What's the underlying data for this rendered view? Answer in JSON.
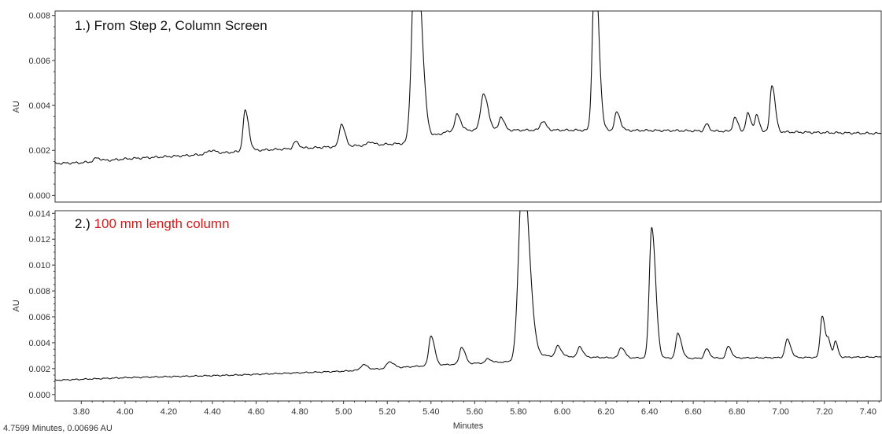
{
  "status_text": "4.7599 Minutes, 0.00696 AU",
  "colors": {
    "trace": "#111111",
    "highlight": "#d11d1d",
    "axis": "#333333"
  },
  "chart_data": [
    {
      "type": "line",
      "title_prefix": "1.) ",
      "title_main": "From Step 2, Column Screen",
      "title_main_color": "#111111",
      "xlabel": "",
      "ylabel": "AU",
      "xlim": [
        3.68,
        7.46
      ],
      "ylim": [
        -0.0003,
        0.0082
      ],
      "yticks": [
        "0.000",
        "0.002",
        "0.004",
        "0.006",
        "0.008"
      ],
      "grid": false,
      "baseline": [
        [
          3.68,
          0.00142
        ],
        [
          3.8,
          0.00145
        ],
        [
          4.0,
          0.00162
        ],
        [
          4.3,
          0.00178
        ],
        [
          4.6,
          0.002
        ],
        [
          5.0,
          0.00218
        ],
        [
          5.3,
          0.00232
        ],
        [
          5.5,
          0.0029
        ],
        [
          6.0,
          0.0029
        ],
        [
          6.5,
          0.00288
        ],
        [
          7.0,
          0.00282
        ],
        [
          7.46,
          0.00275
        ]
      ],
      "peaks": [
        {
          "x": 3.87,
          "height": 0.00015,
          "width": 0.012
        },
        {
          "x": 4.39,
          "height": 0.00015,
          "width": 0.015
        },
        {
          "x": 4.55,
          "height": 0.0018,
          "width": 0.01
        },
        {
          "x": 4.78,
          "height": 0.0003,
          "width": 0.01
        },
        {
          "x": 4.99,
          "height": 0.001,
          "width": 0.01
        },
        {
          "x": 5.12,
          "height": 0.00015,
          "width": 0.01
        },
        {
          "x": 5.33,
          "height": 0.0095,
          "width": 0.016
        },
        {
          "x": 5.52,
          "height": 0.0007,
          "width": 0.01
        },
        {
          "x": 5.64,
          "height": 0.0016,
          "width": 0.013
        },
        {
          "x": 5.72,
          "height": 0.0006,
          "width": 0.009
        },
        {
          "x": 5.91,
          "height": 0.0004,
          "width": 0.01
        },
        {
          "x": 6.15,
          "height": 0.0075,
          "width": 0.011
        },
        {
          "x": 6.25,
          "height": 0.0008,
          "width": 0.01
        },
        {
          "x": 6.66,
          "height": 0.0003,
          "width": 0.008
        },
        {
          "x": 6.79,
          "height": 0.0006,
          "width": 0.009
        },
        {
          "x": 6.85,
          "height": 0.0008,
          "width": 0.009
        },
        {
          "x": 6.89,
          "height": 0.0007,
          "width": 0.008
        },
        {
          "x": 6.96,
          "height": 0.0021,
          "width": 0.009
        }
      ]
    },
    {
      "type": "line",
      "title_prefix": "2.) ",
      "title_main": "100 mm length column",
      "title_main_color": "#d11d1d",
      "xlabel": "Minutes",
      "ylabel": "AU",
      "xlim": [
        3.68,
        7.46
      ],
      "ylim": [
        -0.0005,
        0.0142
      ],
      "yticks": [
        "0.000",
        "0.002",
        "0.004",
        "0.006",
        "0.008",
        "0.010",
        "0.012",
        "0.014"
      ],
      "xticks": [
        "3.80",
        "4.00",
        "4.20",
        "4.40",
        "4.60",
        "4.80",
        "5.00",
        "5.20",
        "5.40",
        "5.60",
        "5.80",
        "6.00",
        "6.20",
        "6.40",
        "6.60",
        "6.80",
        "7.00",
        "7.20",
        "7.40"
      ],
      "grid": false,
      "baseline": [
        [
          3.68,
          0.0011
        ],
        [
          4.0,
          0.0013
        ],
        [
          4.5,
          0.0015
        ],
        [
          5.0,
          0.0018
        ],
        [
          5.4,
          0.00225
        ],
        [
          5.78,
          0.00255
        ],
        [
          5.9,
          0.003
        ],
        [
          6.2,
          0.00285
        ],
        [
          6.6,
          0.0028
        ],
        [
          7.0,
          0.00285
        ],
        [
          7.46,
          0.0029
        ]
      ],
      "peaks": [
        {
          "x": 5.09,
          "height": 0.0004,
          "width": 0.012
        },
        {
          "x": 5.21,
          "height": 0.0005,
          "width": 0.012
        },
        {
          "x": 5.4,
          "height": 0.0023,
          "width": 0.01
        },
        {
          "x": 5.54,
          "height": 0.0013,
          "width": 0.01
        },
        {
          "x": 5.66,
          "height": 0.0003,
          "width": 0.01
        },
        {
          "x": 5.82,
          "height": 0.015,
          "width": 0.018
        },
        {
          "x": 5.98,
          "height": 0.0008,
          "width": 0.01
        },
        {
          "x": 6.08,
          "height": 0.0008,
          "width": 0.009
        },
        {
          "x": 6.27,
          "height": 0.0008,
          "width": 0.01
        },
        {
          "x": 6.41,
          "height": 0.0101,
          "width": 0.011
        },
        {
          "x": 6.53,
          "height": 0.0019,
          "width": 0.01
        },
        {
          "x": 6.66,
          "height": 0.0007,
          "width": 0.009
        },
        {
          "x": 6.76,
          "height": 0.0009,
          "width": 0.009
        },
        {
          "x": 7.03,
          "height": 0.0014,
          "width": 0.01
        },
        {
          "x": 7.19,
          "height": 0.0032,
          "width": 0.009
        },
        {
          "x": 7.22,
          "height": 0.0011,
          "width": 0.007
        },
        {
          "x": 7.25,
          "height": 0.0012,
          "width": 0.007
        }
      ]
    }
  ]
}
